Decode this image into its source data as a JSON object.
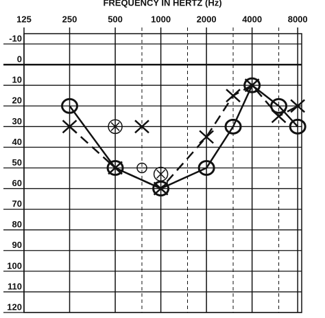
{
  "chart_data": {
    "type": "audiogram",
    "title": "FREQUENCY IN HERTZ (Hz)",
    "x_scale": "log",
    "xlim": [
      125,
      8500
    ],
    "xticks": [
      125,
      250,
      500,
      1000,
      2000,
      4000,
      8000
    ],
    "minor_xticks": [
      750,
      1500,
      3000,
      6000
    ],
    "ylim": [
      -15,
      120
    ],
    "yticks": [
      -10,
      0,
      10,
      20,
      30,
      40,
      50,
      60,
      70,
      80,
      90,
      100,
      110,
      120
    ],
    "grid": true,
    "series": [
      {
        "marker": "circle",
        "line": "solid",
        "color": "#111111",
        "x": [
          250,
          500,
          1000,
          2000,
          3000,
          4000,
          6000,
          8000
        ],
        "values": [
          20,
          50,
          60,
          50,
          30,
          10,
          20,
          30
        ]
      },
      {
        "marker": "x",
        "line": "dashed",
        "color": "#111111",
        "x": [
          250,
          500,
          1000,
          2000,
          3000,
          4000,
          6000,
          8000
        ],
        "values": [
          30,
          50,
          60,
          35,
          15,
          10,
          25,
          20
        ]
      },
      {
        "marker": "circled-x",
        "line": "none",
        "color": "#111111",
        "x": [
          500,
          1000
        ],
        "values": [
          30,
          53
        ]
      },
      {
        "marker": "x",
        "line": "none",
        "color": "#111111",
        "x": [
          750
        ],
        "values": [
          30
        ]
      },
      {
        "marker": "small-circle",
        "line": "none",
        "color": "#111111",
        "x": [
          750
        ],
        "values": [
          50
        ]
      }
    ]
  }
}
